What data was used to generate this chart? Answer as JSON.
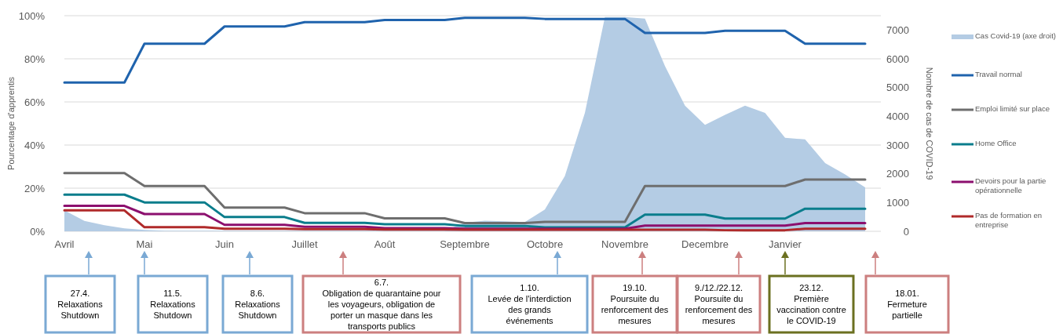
{
  "chart_data": {
    "type": "line",
    "ylabel": "Pourcentage d'apprentis",
    "y2label": "Nombre de cas de COVID-19",
    "categories": [
      "Avril",
      null,
      null,
      null,
      "Mai",
      null,
      null,
      null,
      "Juin",
      null,
      null,
      null,
      "Juillet",
      null,
      null,
      null,
      "Août",
      null,
      null,
      null,
      "Septembre",
      null,
      null,
      null,
      "Octobre",
      null,
      null,
      null,
      "Novembre",
      null,
      null,
      null,
      "Decembre",
      null,
      null,
      null,
      "Janvier",
      null,
      null,
      null,
      null
    ],
    "series": [
      {
        "name": "Cas Covid-19 (axe droit)",
        "type": "area",
        "axis": "y2",
        "color": "#b4cce4",
        "values": [
          730,
          360,
          210,
          100,
          50,
          20,
          20,
          20,
          20,
          20,
          20,
          20,
          20,
          20,
          20,
          20,
          20,
          20,
          20,
          20,
          300,
          370,
          350,
          320,
          760,
          1920,
          4120,
          7450,
          7450,
          7400,
          5750,
          4370,
          3700,
          4050,
          4370,
          4120,
          3250,
          3200,
          2370,
          1980,
          1530
        ]
      },
      {
        "name": "Travail normal",
        "color": "#1f63ad",
        "values": [
          69,
          69,
          69,
          69,
          87,
          87,
          87,
          87,
          95,
          95,
          95,
          95,
          97,
          97,
          97,
          97,
          98,
          98,
          98,
          98,
          99,
          99,
          99,
          99,
          98.5,
          98.5,
          98.5,
          98.5,
          98.5,
          92,
          92,
          92,
          92,
          93,
          93,
          93,
          93,
          87,
          87,
          87,
          87
        ]
      },
      {
        "name": "Emploi limité sur place",
        "color": "#6e6e6e",
        "values": [
          27,
          27,
          27,
          27,
          21,
          21,
          21,
          21,
          11,
          11,
          11,
          11,
          8.4,
          8.4,
          8.4,
          8.4,
          6,
          6,
          6,
          6,
          3.8,
          3.8,
          3.8,
          3.8,
          4.4,
          4.4,
          4.4,
          4.4,
          4.4,
          21,
          21,
          21,
          21,
          21,
          21,
          21,
          21,
          24,
          24,
          24,
          24
        ]
      },
      {
        "name": "Home Office",
        "color": "#0a7d8c",
        "values": [
          17,
          17,
          17,
          17,
          13.4,
          13.4,
          13.4,
          13.4,
          6.6,
          6.6,
          6.6,
          6.6,
          3.9,
          3.9,
          3.9,
          3.9,
          3.3,
          3.3,
          3.3,
          3.3,
          2.5,
          2.5,
          2.5,
          2.5,
          1.8,
          1.8,
          1.8,
          1.8,
          1.8,
          7.7,
          7.7,
          7.7,
          7.7,
          5.9,
          5.9,
          5.9,
          5.9,
          10.5,
          10.5,
          10.5,
          10.5
        ]
      },
      {
        "name": "Devoirs pour la partie opérationnelle",
        "color": "#8c0f6e",
        "values": [
          11.8,
          11.8,
          11.8,
          11.8,
          8,
          8,
          8,
          8,
          3,
          3,
          3,
          3,
          2.1,
          2.1,
          2.1,
          2.1,
          1.5,
          1.5,
          1.5,
          1.5,
          1.2,
          1.2,
          1.2,
          1.2,
          1.2,
          1.2,
          1.2,
          1.2,
          1.2,
          2.6,
          2.6,
          2.6,
          2.6,
          2.6,
          2.6,
          2.6,
          2.6,
          3.8,
          3.8,
          3.8,
          3.8
        ]
      },
      {
        "name": "Pas de formation en entreprise",
        "color": "#b02a2a",
        "values": [
          9.7,
          9.7,
          9.7,
          9.7,
          1.9,
          1.9,
          1.9,
          1.9,
          1.2,
          1.2,
          1.2,
          1.2,
          1,
          1,
          1,
          1,
          0.8,
          0.8,
          0.8,
          0.8,
          0.7,
          0.7,
          0.7,
          0.7,
          0.7,
          0.7,
          0.7,
          0.7,
          0.7,
          0.7,
          0.7,
          0.7,
          0.7,
          0.5,
          0.5,
          0.5,
          0.5,
          1.2,
          1.2,
          1.2,
          1.2
        ]
      }
    ],
    "ylim": [
      0,
      100
    ],
    "yticks": [
      {
        "value": 0,
        "label": "0%"
      },
      {
        "value": 20,
        "label": "20%"
      },
      {
        "value": 40,
        "label": "40%"
      },
      {
        "value": 60,
        "label": "60%"
      },
      {
        "value": 80,
        "label": "80%"
      },
      {
        "value": 100,
        "label": "100%"
      }
    ],
    "y2lim": [
      0,
      7500
    ],
    "y2ticks": [
      0,
      1000,
      2000,
      3000,
      4000,
      5000,
      6000,
      7000
    ],
    "grid": "y",
    "legend": "right",
    "marker": "none",
    "annotations": [
      "27.4.\nRelaxations\nShutdown",
      "11.5.\nRelaxations\nShutdown",
      "8.6.\nRelaxations\nShutdown",
      "6.7.\nObligation de quarantaine pour\nles voyageurs, obligation de\nporter un masque dans les\ntransports publics",
      "1.10.\nLevée de l'interdiction\ndes grands\névénements",
      "19.10.\nPoursuite du\nrenforcement des\nmesures",
      "9./12./22.12.\nPoursuite du\nrenforcement des\nmesures",
      "23.12.\nPremière\nvaccination contre\nle COVID-19",
      "18.01.\nFermeture\npartielle"
    ]
  }
}
